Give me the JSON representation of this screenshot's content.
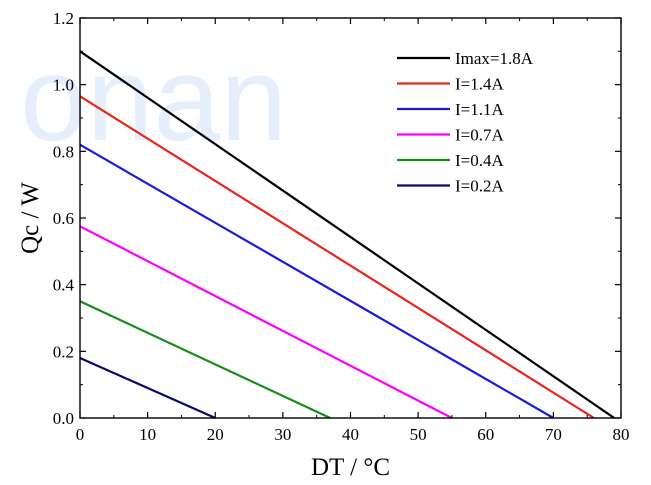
{
  "watermark": "onan",
  "chart_data": {
    "type": "line",
    "title": "",
    "xlabel": "DT / °C",
    "ylabel": "Qc / W",
    "xlim": [
      0,
      80
    ],
    "ylim": [
      0,
      1.2
    ],
    "xticks": [
      "0",
      "10",
      "20",
      "30",
      "40",
      "50",
      "60",
      "70",
      "80"
    ],
    "yticks": [
      "0.0",
      "0.2",
      "0.4",
      "0.6",
      "0.8",
      "1.0",
      "1.2"
    ],
    "grid": false,
    "legend_position": "top-right",
    "series": [
      {
        "name": "Imax=1.8A",
        "color": "#000000",
        "x": [
          0,
          79
        ],
        "y": [
          1.1,
          0.0
        ]
      },
      {
        "name": "I=1.4A",
        "color": "#e8251e",
        "x": [
          0,
          76
        ],
        "y": [
          0.965,
          0.0
        ]
      },
      {
        "name": "I=1.1A",
        "color": "#1a1adc",
        "x": [
          0,
          70
        ],
        "y": [
          0.82,
          0.0
        ]
      },
      {
        "name": "I=0.7A",
        "color": "#ff00ff",
        "x": [
          0,
          55
        ],
        "y": [
          0.575,
          0.0
        ]
      },
      {
        "name": "I=0.4A",
        "color": "#1a8a1a",
        "x": [
          0,
          37
        ],
        "y": [
          0.35,
          0.0
        ]
      },
      {
        "name": "I=0.2A",
        "color": "#0a0a66",
        "x": [
          0,
          20
        ],
        "y": [
          0.18,
          0.0
        ]
      }
    ]
  }
}
